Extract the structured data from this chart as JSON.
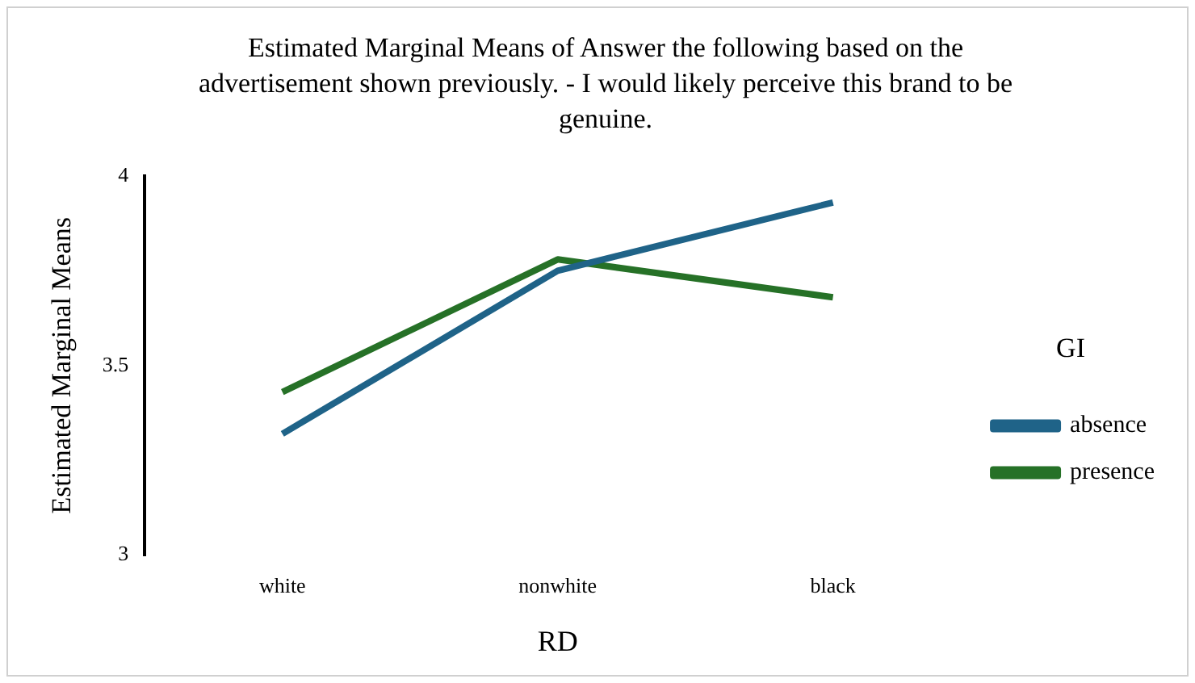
{
  "chart_data": {
    "type": "line",
    "title": "Estimated Marginal Means of Answer the following based on the advertisement shown previously. - I would likely perceive this brand to be genuine.",
    "xlabel": "RD",
    "ylabel": "Estimated Marginal Means",
    "legend_title": "GI",
    "legend": "right",
    "grid": false,
    "marker": "none",
    "categories": [
      "white",
      "nonwhite",
      "black"
    ],
    "series": [
      {
        "name": "absence",
        "color": "#1f6388",
        "values": [
          3.32,
          3.75,
          3.93
        ]
      },
      {
        "name": "presence",
        "color": "#267127",
        "values": [
          3.43,
          3.78,
          3.68
        ]
      }
    ],
    "ylim": [
      3,
      4
    ],
    "yticks": [
      3,
      3.5,
      4
    ]
  }
}
